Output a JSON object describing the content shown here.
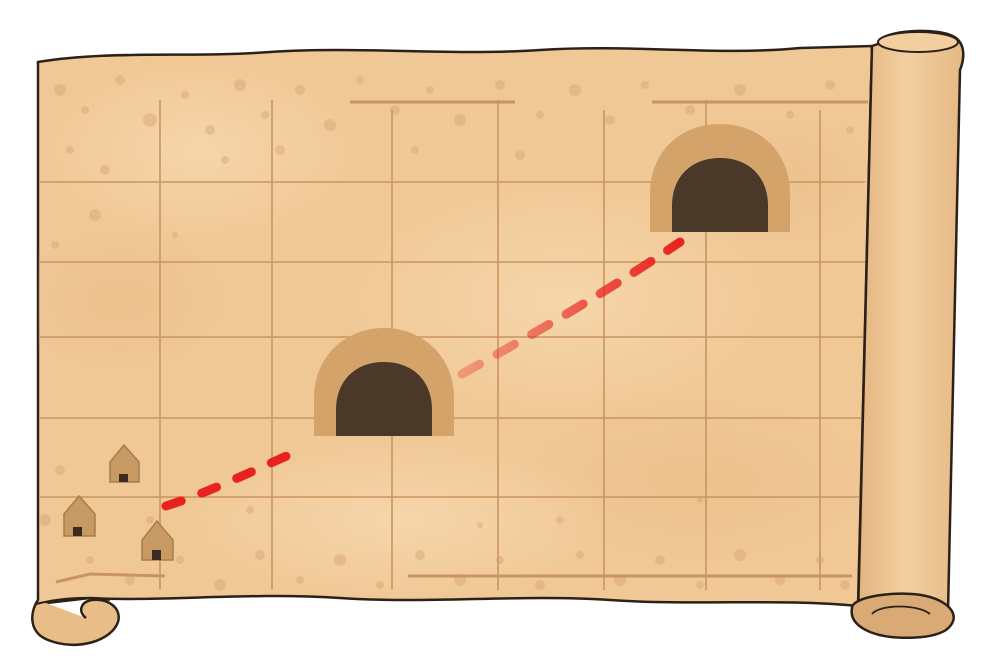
{
  "scene": {
    "type": "treasure-map-scroll",
    "colors": {
      "parchment": "#f0c896",
      "parchment_light": "#f6d6aa",
      "parchment_dark": "#e2b482",
      "speckle": "#d6a574",
      "grid_line": "#c9955f",
      "outline": "#2b2118",
      "cave_arch": "#d4a36a",
      "cave_inner": "#4a3829",
      "hut": "#c79a63",
      "hut_door": "#3a2c20",
      "path": "#e8231f"
    },
    "icons": {
      "village": "hut-icon",
      "cave": "cave-entrance-icon",
      "route": "dashed-path"
    }
  }
}
